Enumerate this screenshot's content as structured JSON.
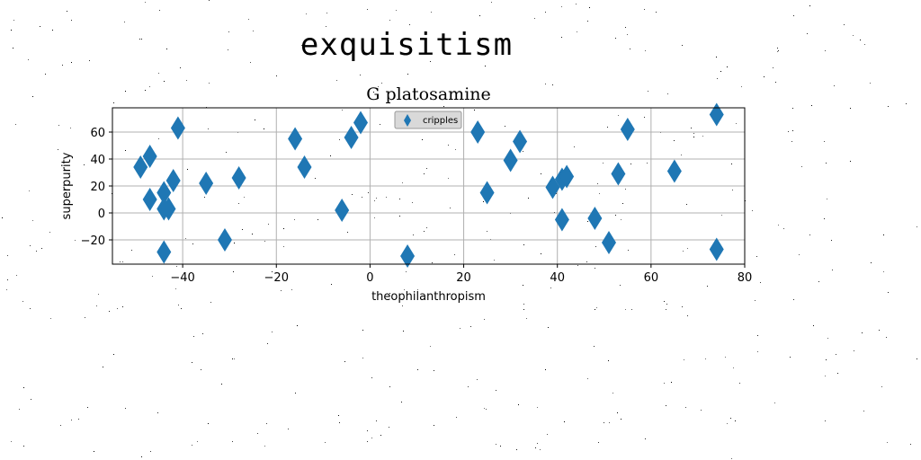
{
  "page": {
    "heading": "exquisitism"
  },
  "chart_data": {
    "type": "scatter",
    "title": "G platosamine",
    "xlabel": "theophilanthropism",
    "ylabel": "superpurity",
    "xlim": [
      -55,
      80
    ],
    "ylim": [
      -38,
      78
    ],
    "xticks": [
      -40,
      -20,
      0,
      20,
      40,
      60,
      80
    ],
    "yticks": [
      -20,
      0,
      20,
      40,
      60
    ],
    "xtick_labels": [
      "−40",
      "−20",
      "0",
      "20",
      "40",
      "60",
      "80"
    ],
    "ytick_labels": [
      "−20",
      "0",
      "20",
      "40",
      "60"
    ],
    "grid": true,
    "legend": {
      "position": "top-center",
      "entries": [
        "cripples"
      ]
    },
    "series": [
      {
        "name": "cripples",
        "marker": "thin-diamond",
        "color": "#1f77b4",
        "points": [
          [
            -49,
            34
          ],
          [
            -47,
            42
          ],
          [
            -47,
            10
          ],
          [
            -44,
            15
          ],
          [
            -44,
            3
          ],
          [
            -43,
            3
          ],
          [
            -42,
            24
          ],
          [
            -44,
            -29
          ],
          [
            -41,
            63
          ],
          [
            -35,
            22
          ],
          [
            -31,
            -20
          ],
          [
            -28,
            26
          ],
          [
            -16,
            55
          ],
          [
            -14,
            34
          ],
          [
            -6,
            2
          ],
          [
            -4,
            56
          ],
          [
            -2,
            67
          ],
          [
            8,
            -32
          ],
          [
            23,
            60
          ],
          [
            25,
            15
          ],
          [
            30,
            39
          ],
          [
            32,
            53
          ],
          [
            39,
            19
          ],
          [
            41,
            25
          ],
          [
            42,
            27
          ],
          [
            41,
            -5
          ],
          [
            48,
            -4
          ],
          [
            51,
            -22
          ],
          [
            53,
            29
          ],
          [
            55,
            62
          ],
          [
            65,
            31
          ],
          [
            74,
            73
          ],
          [
            74,
            -27
          ]
        ]
      }
    ]
  }
}
